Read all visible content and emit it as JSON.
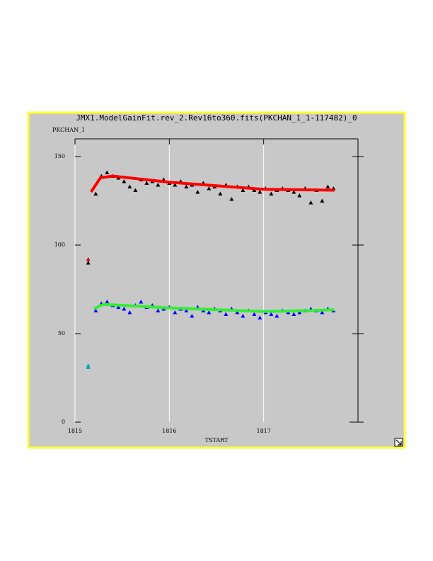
{
  "chart_data": {
    "type": "scatter",
    "title": "JMX1.ModelGainFit.rev_2.Rev16to360.fits(PKCHAN_1_1-117482)_0",
    "y_label": "PKCHAN_1",
    "x_label": "TSTART",
    "xlim": [
      1815,
      1818
    ],
    "xticks": [
      1815,
      1816,
      1817
    ],
    "ylim": [
      0,
      160
    ],
    "yticks": [
      0,
      50,
      100,
      150
    ],
    "grid": "x",
    "series": [
      {
        "mode": "markers",
        "color": "#000000",
        "x": [
          1815.22,
          1815.28,
          1815.34,
          1815.4,
          1815.46,
          1815.52,
          1815.58,
          1815.64,
          1815.7,
          1815.76,
          1815.82,
          1815.88,
          1815.94,
          1816.0,
          1816.06,
          1816.12,
          1816.18,
          1816.24,
          1816.3,
          1816.36,
          1816.42,
          1816.48,
          1816.54,
          1816.6,
          1816.66,
          1816.72,
          1816.78,
          1816.84,
          1816.9,
          1816.96,
          1817.02,
          1817.08,
          1817.14,
          1817.2,
          1817.26,
          1817.32,
          1817.38,
          1817.44,
          1817.5,
          1817.56,
          1817.62,
          1817.68,
          1817.74
        ],
        "values": [
          129,
          139,
          141,
          139,
          138,
          136,
          133,
          131,
          137,
          135,
          136,
          134,
          137,
          135,
          134,
          136,
          133,
          134,
          130,
          135,
          132,
          133,
          129,
          134,
          126,
          133,
          131,
          133,
          131,
          130,
          132,
          129,
          131,
          132,
          131,
          130,
          128,
          132,
          124,
          131,
          125,
          133,
          132
        ]
      },
      {
        "mode": "markers",
        "color": "#0000ff",
        "x": [
          1815.22,
          1815.28,
          1815.34,
          1815.4,
          1815.46,
          1815.52,
          1815.58,
          1815.64,
          1815.7,
          1815.76,
          1815.82,
          1815.88,
          1815.94,
          1816.0,
          1816.06,
          1816.12,
          1816.18,
          1816.24,
          1816.3,
          1816.36,
          1816.42,
          1816.48,
          1816.54,
          1816.6,
          1816.66,
          1816.72,
          1816.78,
          1816.84,
          1816.9,
          1816.96,
          1817.02,
          1817.08,
          1817.14,
          1817.2,
          1817.26,
          1817.32,
          1817.38,
          1817.44,
          1817.5,
          1817.56,
          1817.62,
          1817.68,
          1817.74
        ],
        "values": [
          63,
          67,
          68,
          66,
          65,
          64,
          62,
          66,
          68,
          65,
          66,
          63,
          64,
          65,
          62,
          64,
          63,
          60,
          65,
          63,
          62,
          64,
          63,
          61,
          64,
          62,
          60,
          63,
          61,
          59,
          62,
          61,
          60,
          63,
          62,
          61,
          62,
          63,
          64,
          63,
          62,
          64,
          63
        ]
      },
      {
        "mode": "line",
        "color": "#ff0000",
        "x": [
          1815.17,
          1815.27,
          1815.4,
          1816,
          1816.5,
          1817,
          1817.75
        ],
        "values": [
          130,
          138,
          139,
          135.5,
          133.5,
          131.5,
          131
        ]
      },
      {
        "mode": "line",
        "color": "#33ee33",
        "x": [
          1815.2,
          1815.3,
          1815.5,
          1816,
          1816.5,
          1817,
          1817.5,
          1817.75
        ],
        "values": [
          64,
          66.5,
          66,
          64.5,
          63.5,
          62.5,
          63,
          63.5
        ]
      },
      {
        "mode": "markers",
        "color": "#cc0000",
        "x": [
          1815.14
        ],
        "values": [
          92
        ]
      },
      {
        "mode": "markers",
        "color": "#000000",
        "x": [
          1815.14
        ],
        "values": [
          90
        ]
      },
      {
        "mode": "markers",
        "color": "#00aaaa",
        "x": [
          1815.14,
          1815.14
        ],
        "values": [
          32,
          31
        ]
      }
    ]
  }
}
